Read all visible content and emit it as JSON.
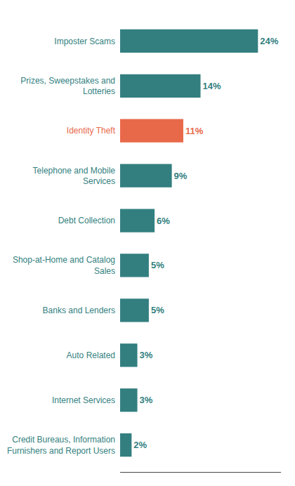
{
  "chart_data": {
    "type": "bar",
    "orientation": "horizontal",
    "categories": [
      "Credit Bureaus, Information\nFurnishers and Report Users",
      "Internet Services",
      "Auto Related",
      "Banks and Lenders",
      "Shop-at-Home and Catalog\nSales",
      "Debt Collection",
      "Telephone and Mobile\nServices",
      "Identity Theft",
      "Prizes, Sweepstakes and\nLotteries",
      "Imposter Scams"
    ],
    "values": [
      2,
      3,
      3,
      5,
      5,
      6,
      9,
      11,
      14,
      24
    ],
    "value_labels": [
      "2%",
      "3%",
      "3%",
      "5%",
      "5%",
      "6%",
      "9%",
      "11%",
      "14%",
      "24%"
    ],
    "colors": [
      "#337f80",
      "#337f80",
      "#337f80",
      "#337f80",
      "#337f80",
      "#337f80",
      "#337f80",
      "#e8694a",
      "#337f80",
      "#337f80"
    ],
    "xlim": [
      0,
      28
    ],
    "data_labels": true,
    "tick_labels": "y",
    "grid": false
  }
}
